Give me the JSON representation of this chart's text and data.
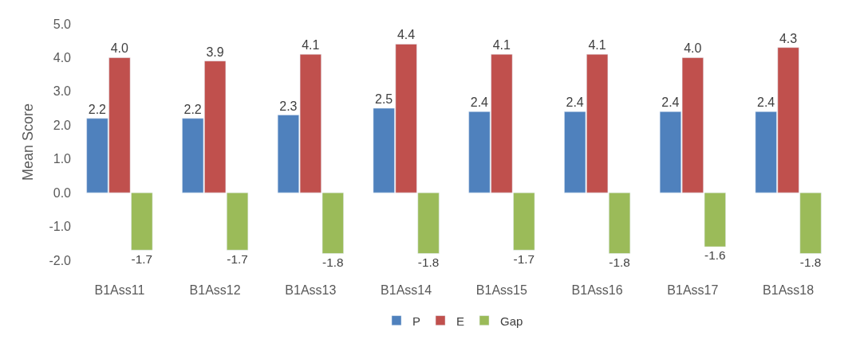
{
  "chart_data": {
    "type": "bar",
    "categories": [
      "B1Ass11",
      "B1Ass12",
      "B1Ass13",
      "B1Ass14",
      "B1Ass15",
      "B1Ass16",
      "B1Ass17",
      "B1Ass18"
    ],
    "series": [
      {
        "name": "P",
        "color": "#4f81bd",
        "values": [
          2.2,
          2.2,
          2.3,
          2.5,
          2.4,
          2.4,
          2.4,
          2.4
        ],
        "value_labels": [
          "2.2",
          "2.2",
          "2.3",
          "2.5",
          "2.4",
          "2.4",
          "2.4",
          "2.4"
        ]
      },
      {
        "name": "E",
        "color": "#c0504d",
        "values": [
          4.0,
          3.9,
          4.1,
          4.4,
          4.1,
          4.1,
          4.0,
          4.3
        ],
        "value_labels": [
          "4.0",
          "3.9",
          "4.1",
          "4.4",
          "4.1",
          "4.1",
          "4.0",
          "4.3"
        ]
      },
      {
        "name": "Gap",
        "color": "#9bbb59",
        "values": [
          -1.7,
          -1.7,
          -1.8,
          -1.8,
          -1.7,
          -1.8,
          -1.6,
          -1.8
        ],
        "value_labels": [
          "-1.7",
          "-1.7",
          "-1.8",
          "-1.8",
          "-1.7",
          "-1.8",
          "-1.6",
          "-1.8"
        ]
      }
    ],
    "ylabel": "Mean Score",
    "ylim": [
      -2,
      5
    ],
    "yticks": [
      {
        "value": -2,
        "label": "-2.0"
      },
      {
        "value": -1,
        "label": "-1.0"
      },
      {
        "value": 0,
        "label": "0.0"
      },
      {
        "value": 1,
        "label": "1.0"
      },
      {
        "value": 2,
        "label": "2.0"
      },
      {
        "value": 3,
        "label": "3.0"
      },
      {
        "value": 4,
        "label": "4.0"
      },
      {
        "value": 5,
        "label": "5.0"
      }
    ],
    "legend": "bottom"
  }
}
